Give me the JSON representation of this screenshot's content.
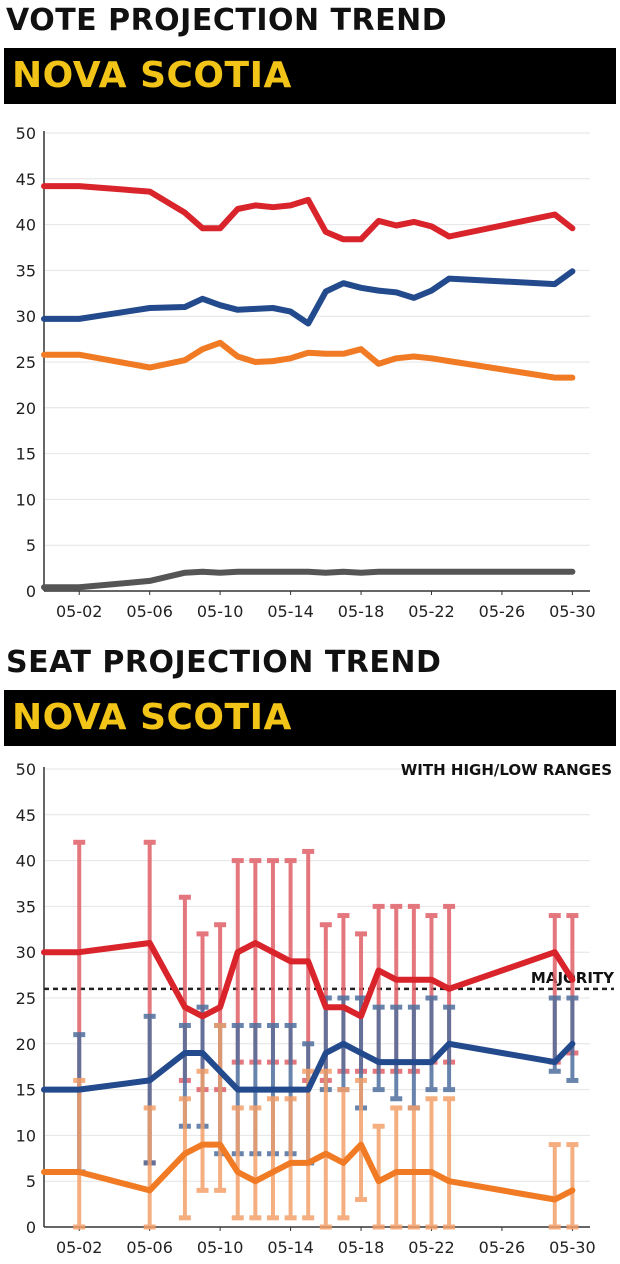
{
  "sections": {
    "vote_title": "VOTE PROJECTION TREND",
    "vote_banner": "NOVA SCOTIA",
    "seat_title": "SEAT PROJECTION TREND",
    "seat_banner": "NOVA SCOTIA"
  },
  "chart_data": [
    {
      "type": "line",
      "title": "VOTE PROJECTION TREND",
      "subtitle": "NOVA SCOTIA",
      "x_tick_labels": [
        "05-02",
        "05-06",
        "05-10",
        "05-14",
        "05-18",
        "05-22",
        "05-26",
        "05-30"
      ],
      "x_range": [
        0,
        31
      ],
      "x_tick_positions": [
        2,
        6,
        10,
        14,
        18,
        22,
        26,
        30
      ],
      "ylim": [
        0,
        50
      ],
      "y_ticks": [
        0,
        5,
        10,
        15,
        20,
        25,
        30,
        35,
        40,
        45,
        50
      ],
      "grid": true,
      "series": [
        {
          "color": "#d8242a",
          "x": [
            0,
            2,
            6,
            8,
            9,
            10,
            11,
            12,
            13,
            14,
            15,
            16,
            17,
            18,
            19,
            20,
            21,
            22,
            23,
            29,
            30
          ],
          "y": [
            44.2,
            44.2,
            43.6,
            41.3,
            39.6,
            39.6,
            41.7,
            42.1,
            41.9,
            42.1,
            42.7,
            39.2,
            38.4,
            38.4,
            40.4,
            39.9,
            40.3,
            39.8,
            38.7,
            41.1,
            39.6
          ]
        },
        {
          "color": "#234a8c",
          "x": [
            0,
            2,
            6,
            8,
            9,
            10,
            11,
            12,
            13,
            14,
            15,
            16,
            17,
            18,
            19,
            20,
            21,
            22,
            23,
            29,
            30
          ],
          "y": [
            29.7,
            29.7,
            30.9,
            31.0,
            31.9,
            31.2,
            30.7,
            30.8,
            30.9,
            30.5,
            29.2,
            32.7,
            33.6,
            33.1,
            32.8,
            32.6,
            32.0,
            32.8,
            34.1,
            33.5,
            34.9
          ]
        },
        {
          "color": "#f07b24",
          "x": [
            0,
            2,
            6,
            8,
            9,
            10,
            11,
            12,
            13,
            14,
            15,
            16,
            17,
            18,
            19,
            20,
            21,
            22,
            23,
            29,
            30
          ],
          "y": [
            25.8,
            25.8,
            24.4,
            25.2,
            26.4,
            27.1,
            25.6,
            25.0,
            25.1,
            25.4,
            26.0,
            25.9,
            25.9,
            26.4,
            24.8,
            25.4,
            25.6,
            25.4,
            25.1,
            23.3,
            23.3
          ]
        },
        {
          "color": "#555555",
          "x": [
            0,
            2,
            6,
            8,
            9,
            10,
            11,
            12,
            13,
            14,
            15,
            16,
            17,
            18,
            19,
            20,
            21,
            22,
            23,
            29,
            30
          ],
          "y": [
            0.4,
            0.4,
            1.1,
            2.0,
            2.1,
            2.0,
            2.1,
            2.1,
            2.1,
            2.1,
            2.1,
            2.0,
            2.1,
            2.0,
            2.1,
            2.1,
            2.1,
            2.1,
            2.1,
            2.1,
            2.1
          ]
        }
      ]
    },
    {
      "type": "line",
      "title": "SEAT PROJECTION TREND",
      "subtitle": "NOVA SCOTIA",
      "annotation": "WITH HIGH/LOW RANGES",
      "majority_label": "MAJORITY",
      "majority_value": 26,
      "x_tick_labels": [
        "05-02",
        "05-06",
        "05-10",
        "05-14",
        "05-18",
        "05-22",
        "05-26",
        "05-30"
      ],
      "x_range": [
        0,
        31
      ],
      "x_tick_positions": [
        2,
        6,
        10,
        14,
        18,
        22,
        26,
        30
      ],
      "ylim": [
        0,
        50
      ],
      "y_ticks": [
        0,
        5,
        10,
        15,
        20,
        25,
        30,
        35,
        40,
        45,
        50
      ],
      "grid": true,
      "series": [
        {
          "color": "#d8242a",
          "range_color": "#e06068",
          "x": [
            0,
            2,
            6,
            8,
            9,
            10,
            11,
            12,
            13,
            14,
            15,
            16,
            17,
            18,
            19,
            20,
            21,
            22,
            23,
            29,
            30
          ],
          "y": [
            30,
            30,
            31,
            24,
            23,
            24,
            30,
            31,
            30,
            29,
            29,
            24,
            24,
            23,
            28,
            27,
            27,
            27,
            26,
            30,
            27
          ],
          "low": [
            null,
            6,
            7,
            16,
            15,
            15,
            18,
            18,
            18,
            18,
            16,
            16,
            17,
            17,
            17,
            17,
            17,
            18,
            18,
            18,
            19
          ],
          "high": [
            null,
            42,
            42,
            36,
            32,
            33,
            40,
            40,
            40,
            40,
            41,
            33,
            34,
            32,
            35,
            35,
            35,
            34,
            35,
            34,
            34
          ]
        },
        {
          "color": "#234a8c",
          "range_color": "#4f6f9e",
          "x": [
            0,
            2,
            6,
            8,
            9,
            10,
            11,
            12,
            13,
            14,
            15,
            16,
            17,
            18,
            19,
            20,
            21,
            22,
            23,
            29,
            30
          ],
          "y": [
            15,
            15,
            16,
            19,
            19,
            17,
            15,
            15,
            15,
            15,
            15,
            19,
            20,
            19,
            18,
            18,
            18,
            18,
            20,
            18,
            20
          ],
          "low": [
            null,
            6,
            7,
            11,
            11,
            8,
            8,
            8,
            8,
            8,
            7,
            15,
            15,
            13,
            15,
            14,
            13,
            15,
            15,
            17,
            16
          ],
          "high": [
            null,
            21,
            23,
            22,
            24,
            22,
            22,
            22,
            22,
            22,
            20,
            25,
            25,
            25,
            24,
            24,
            24,
            25,
            24,
            25,
            25
          ]
        },
        {
          "color": "#f07b24",
          "range_color": "#f4a06a",
          "x": [
            0,
            2,
            6,
            8,
            9,
            10,
            11,
            12,
            13,
            14,
            15,
            16,
            17,
            18,
            19,
            20,
            21,
            22,
            23,
            29,
            30
          ],
          "y": [
            6,
            6,
            4,
            8,
            9,
            9,
            6,
            5,
            6,
            7,
            7,
            8,
            7,
            9,
            5,
            6,
            6,
            6,
            5,
            3,
            4
          ],
          "low": [
            null,
            0,
            0,
            1,
            4,
            4,
            1,
            1,
            1,
            1,
            1,
            0,
            1,
            3,
            0,
            0,
            0,
            0,
            0,
            0,
            0
          ],
          "high": [
            null,
            16,
            13,
            14,
            17,
            22,
            13,
            13,
            14,
            14,
            17,
            17,
            15,
            16,
            11,
            13,
            13,
            14,
            14,
            9,
            9
          ]
        }
      ]
    }
  ]
}
